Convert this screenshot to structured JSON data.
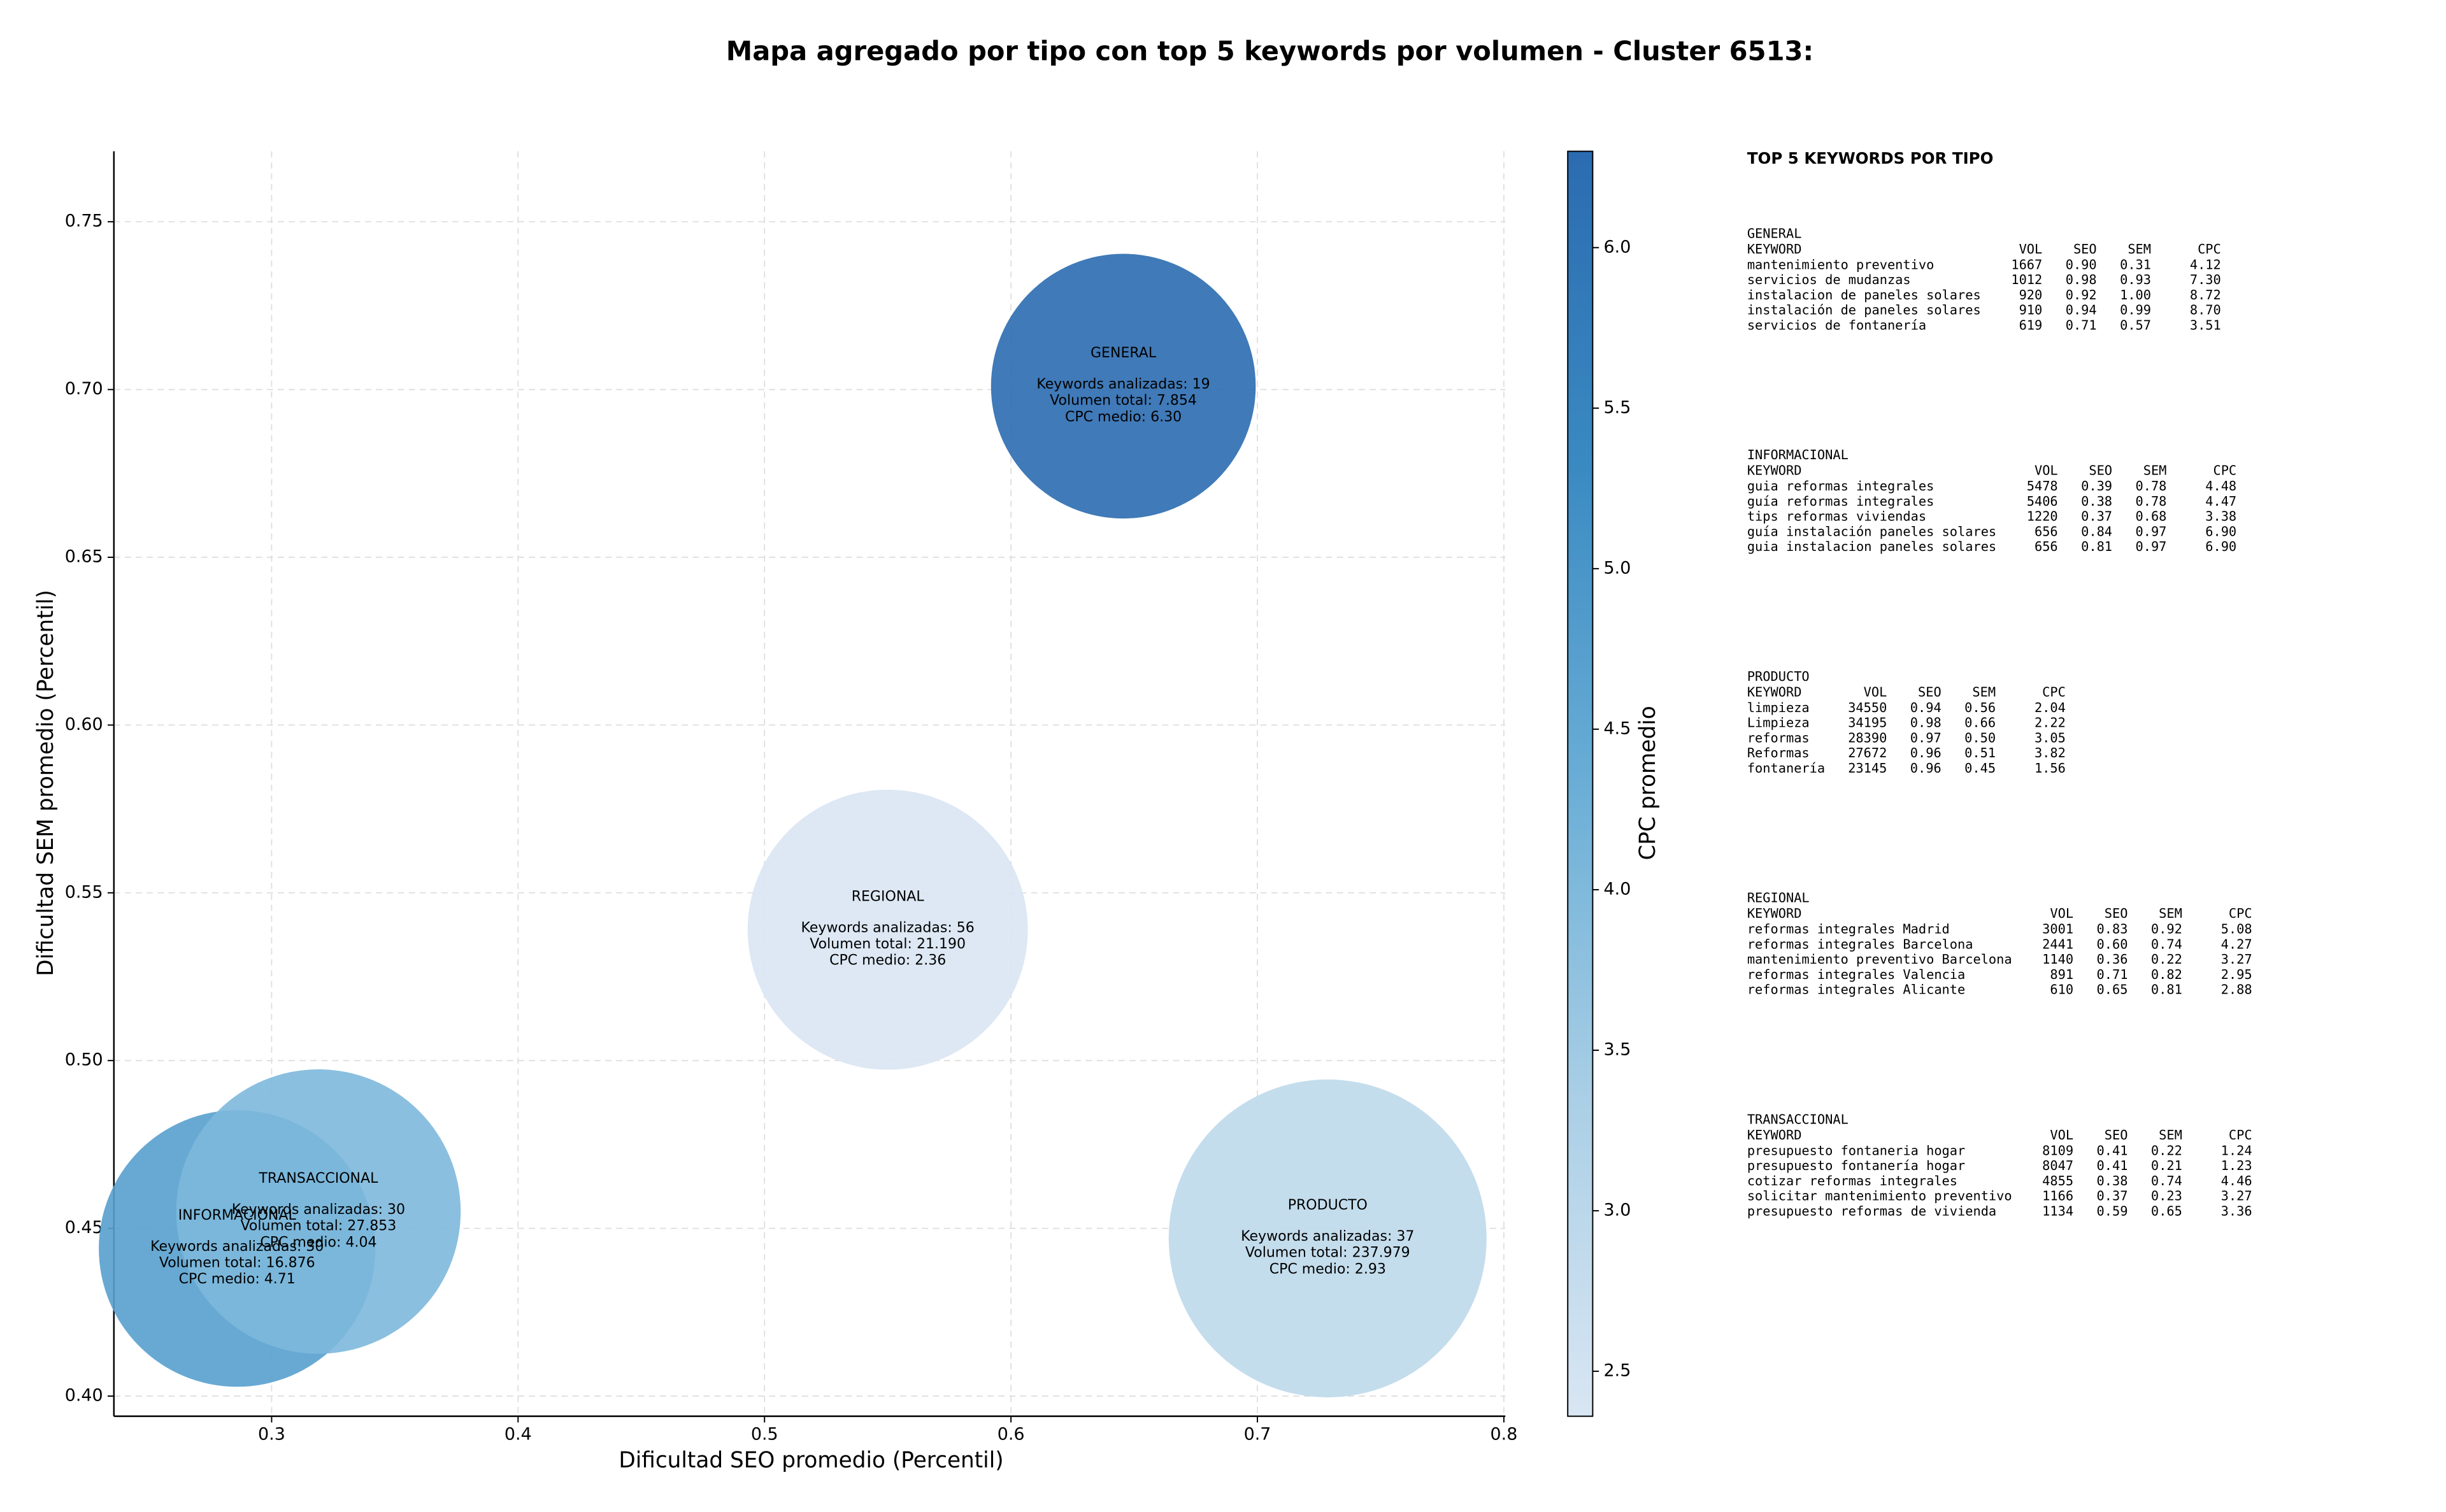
{
  "chart_data": {
    "type": "bubble",
    "title": "Mapa agregado por tipo con top 5 keywords por volumen - Cluster 6513:",
    "xlabel": "Dificultad SEO promedio (Percentil)",
    "ylabel": "Dificultad SEM promedio (Percentil)",
    "point_labels": [
      "GENERAL",
      "INFORMACIONAL",
      "PRODUCTO",
      "REGIONAL",
      "TRANSACCIONAL"
    ],
    "x": [
      0.6456,
      0.286,
      0.7285,
      0.55,
      0.319
    ],
    "values": [
      0.701,
      0.444,
      0.447,
      0.539,
      0.455
    ],
    "sizes": [
      7854,
      16876,
      237979,
      21190,
      27853
    ],
    "color_values": [
      6.3,
      4.71,
      2.93,
      2.36,
      4.04
    ],
    "annotations": [
      [
        "Keywords analizadas: 19",
        "Volumen total: 7.854",
        "CPC medio: 6.30"
      ],
      [
        "Keywords analizadas: 30",
        "Volumen total: 16.876",
        "CPC medio: 4.71"
      ],
      [
        "Keywords analizadas: 37",
        "Volumen total: 237.979",
        "CPC medio: 2.93"
      ],
      [
        "Keywords analizadas: 56",
        "Volumen total: 21.190",
        "CPC medio: 2.36"
      ],
      [
        "Keywords analizadas: 30",
        "Volumen total: 27.853",
        "CPC medio: 4.04"
      ]
    ],
    "xlim": [
      0.236,
      0.8006
    ],
    "ylim": [
      0.394,
      0.771
    ],
    "xticks": [
      0.3,
      0.4,
      0.5,
      0.6,
      0.7,
      0.8
    ],
    "yticks": [
      {
        "value": 0.4,
        "label": "0.40"
      },
      0.45,
      {
        "value": 0.5,
        "label": "0.50"
      },
      0.55,
      {
        "value": 0.6,
        "label": "0.60"
      },
      0.65,
      {
        "value": 0.7,
        "label": "0.70"
      },
      0.75
    ],
    "grid": true,
    "colorbar": {
      "label": "CPC promedio",
      "lim": [
        2.36,
        6.3
      ],
      "ticks": [
        2.5,
        {
          "value": 3,
          "label": "3.0"
        },
        3.5,
        {
          "value": 4,
          "label": "4.0"
        },
        4.5,
        {
          "value": 5,
          "label": "5.0"
        },
        5.5,
        {
          "value": 6,
          "label": "6.0"
        }
      ],
      "colormap": [
        "#d9e6f3",
        "#aacfe6",
        "#6aaed6",
        "#3a8ac2",
        "#2b6cb0"
      ]
    }
  },
  "side_panel": {
    "title": "TOP 5 KEYWORDS POR TIPO",
    "columns": [
      "KEYWORD",
      "VOL",
      "SEO",
      "SEM",
      "CPC"
    ],
    "sections": [
      {
        "name": "GENERAL",
        "rows": [
          [
            "mantenimiento preventivo",
            "1667",
            "0.90",
            "0.31",
            "4.12"
          ],
          [
            "servicios de mudanzas",
            "1012",
            "0.98",
            "0.93",
            "7.30"
          ],
          [
            "instalacion de paneles solares",
            "920",
            "0.92",
            "1.00",
            "8.72"
          ],
          [
            "instalación de paneles solares",
            "910",
            "0.94",
            "0.99",
            "8.70"
          ],
          [
            "servicios de fontanería",
            "619",
            "0.71",
            "0.57",
            "3.51"
          ]
        ]
      },
      {
        "name": "INFORMACIONAL",
        "rows": [
          [
            "guia reformas integrales",
            "5478",
            "0.39",
            "0.78",
            "4.48"
          ],
          [
            "guía reformas integrales",
            "5406",
            "0.38",
            "0.78",
            "4.47"
          ],
          [
            "tips reformas viviendas",
            "1220",
            "0.37",
            "0.68",
            "3.38"
          ],
          [
            "guía instalación paneles solares",
            "656",
            "0.84",
            "0.97",
            "6.90"
          ],
          [
            "guia instalacion paneles solares",
            "656",
            "0.81",
            "0.97",
            "6.90"
          ]
        ]
      },
      {
        "name": "PRODUCTO",
        "rows": [
          [
            "limpieza",
            "34550",
            "0.94",
            "0.56",
            "2.04"
          ],
          [
            "Limpieza",
            "34195",
            "0.98",
            "0.66",
            "2.22"
          ],
          [
            "reformas",
            "28390",
            "0.97",
            "0.50",
            "3.05"
          ],
          [
            "Reformas",
            "27672",
            "0.96",
            "0.51",
            "3.82"
          ],
          [
            "fontanería",
            "23145",
            "0.96",
            "0.45",
            "1.56"
          ]
        ]
      },
      {
        "name": "REGIONAL",
        "rows": [
          [
            "reformas integrales Madrid",
            "3001",
            "0.83",
            "0.92",
            "5.08"
          ],
          [
            "reformas integrales Barcelona",
            "2441",
            "0.60",
            "0.74",
            "4.27"
          ],
          [
            "mantenimiento preventivo Barcelona",
            "1140",
            "0.36",
            "0.22",
            "3.27"
          ],
          [
            "reformas integrales Valencia",
            "891",
            "0.71",
            "0.82",
            "2.95"
          ],
          [
            "reformas integrales Alicante",
            "610",
            "0.65",
            "0.81",
            "2.88"
          ]
        ]
      },
      {
        "name": "TRANSACCIONAL",
        "rows": [
          [
            "presupuesto fontaneria hogar",
            "8109",
            "0.41",
            "0.22",
            "1.24"
          ],
          [
            "presupuesto fontanería hogar",
            "8047",
            "0.41",
            "0.21",
            "1.23"
          ],
          [
            "cotizar reformas integrales",
            "4855",
            "0.38",
            "0.74",
            "4.46"
          ],
          [
            "solicitar mantenimiento preventivo",
            "1166",
            "0.37",
            "0.23",
            "3.27"
          ],
          [
            "presupuesto reformas de vivienda",
            "1134",
            "0.59",
            "0.65",
            "3.36"
          ]
        ]
      }
    ]
  }
}
